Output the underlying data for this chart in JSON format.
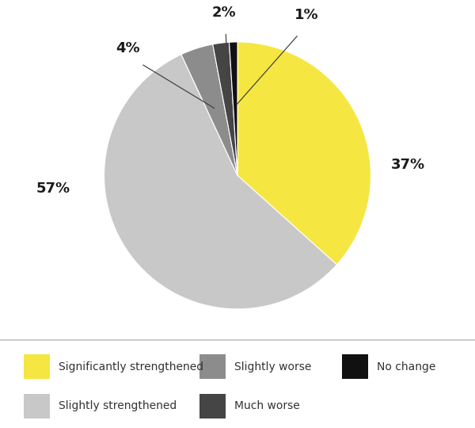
{
  "wedge_sizes": [
    37,
    57,
    4,
    2,
    1
  ],
  "wedge_colors": [
    "#F5E642",
    "#C8C8C8",
    "#8C8C8C",
    "#454545",
    "#111111"
  ],
  "wedge_labels": [
    "37%",
    "57%",
    "4%",
    "2%",
    "1%"
  ],
  "legend_items": [
    {
      "label": "Significantly strengthened",
      "color": "#F5E642"
    },
    {
      "label": "Slightly strengthened",
      "color": "#C8C8C8"
    },
    {
      "label": "Slightly worse",
      "color": "#8C8C8C"
    },
    {
      "label": "Much worse",
      "color": "#454545"
    },
    {
      "label": "No change",
      "color": "#111111"
    }
  ],
  "background_color": "#ffffff",
  "sep_color": "#cccccc",
  "legend_bg_color": "#f2f2f2",
  "label_fontsize": 13,
  "legend_fontsize": 10,
  "startangle": 90
}
